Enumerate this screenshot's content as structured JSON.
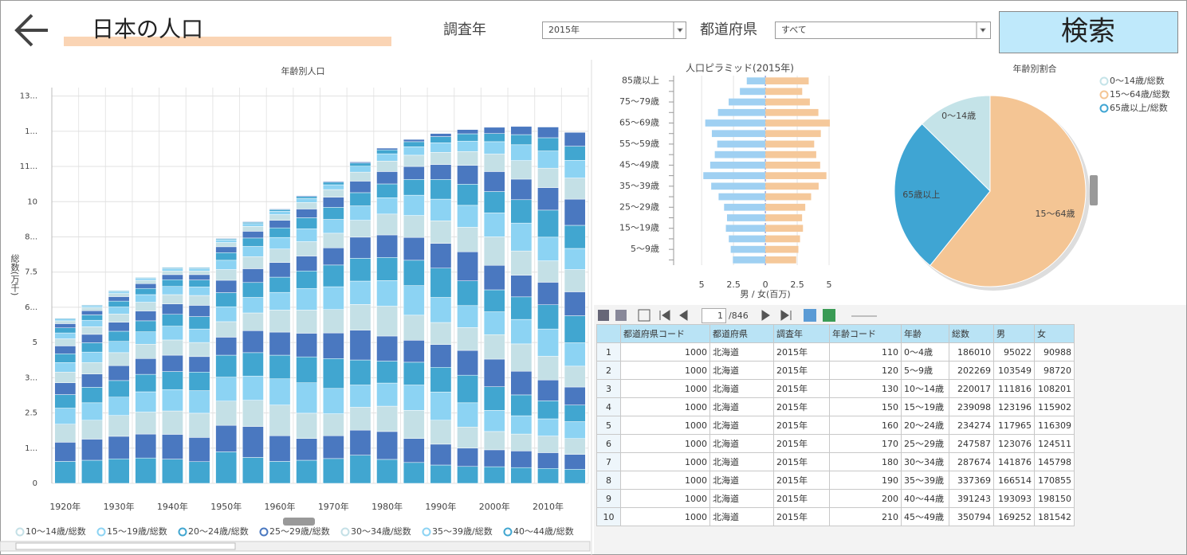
{
  "header": {
    "title": "日本の人口",
    "year_label": "調査年",
    "year_value": "2015年",
    "pref_label": "都道府県",
    "pref_value": "すべて",
    "search_button": "検索"
  },
  "chart_data": [
    {
      "type": "stacked_bar",
      "title": "年齢別人口",
      "ylabel": "総数(万千)",
      "categories": [
        "1920年",
        null,
        "1930年",
        null,
        "1940年",
        null,
        "1950年",
        null,
        "1960年",
        null,
        "1970年",
        null,
        "1980年",
        null,
        "1990年",
        null,
        "2000年",
        null,
        "2010年",
        null
      ],
      "series": [
        {
          "color": "#41a6d0",
          "values": [
            0.78,
            0.82,
            0.87,
            0.9,
            0.86,
            0.77,
            1.12,
            0.92,
            0.78,
            0.82,
            0.88,
            1.0,
            0.85,
            0.74,
            0.65,
            0.6,
            0.59,
            0.56,
            0.53,
            0.5
          ]
        },
        {
          "color": "#4a78c0",
          "values": [
            0.68,
            0.75,
            0.8,
            0.85,
            0.88,
            0.86,
            0.94,
            1.1,
            0.91,
            0.77,
            0.81,
            0.89,
            0.99,
            0.85,
            0.74,
            0.65,
            0.6,
            0.59,
            0.56,
            0.53
          ]
        },
        {
          "name": "10〜14歳/総数",
          "color": "#c4e0e6",
          "values": [
            0.64,
            0.67,
            0.74,
            0.78,
            0.83,
            0.86,
            0.86,
            0.93,
            1.09,
            0.9,
            0.78,
            0.81,
            0.9,
            1.0,
            0.85,
            0.75,
            0.65,
            0.6,
            0.59,
            0.56
          ]
        },
        {
          "name": "15〜19歳/総数",
          "color": "#8cd3f3",
          "values": [
            0.57,
            0.62,
            0.65,
            0.72,
            0.76,
            0.8,
            0.85,
            0.86,
            0.93,
            1.08,
            0.9,
            0.79,
            0.82,
            0.9,
            1.0,
            0.86,
            0.75,
            0.65,
            0.61,
            0.6
          ]
        },
        {
          "name": "20〜24歳/総数",
          "color": "#41a6d0",
          "values": [
            0.48,
            0.55,
            0.59,
            0.62,
            0.64,
            0.66,
            0.78,
            0.83,
            0.84,
            0.92,
            1.06,
            0.89,
            0.78,
            0.81,
            0.88,
            0.98,
            0.84,
            0.74,
            0.64,
            0.59
          ]
        },
        {
          "name": "25〜29歳/総数",
          "color": "#4a78c0",
          "values": [
            0.42,
            0.47,
            0.53,
            0.56,
            0.58,
            0.55,
            0.64,
            0.78,
            0.82,
            0.84,
            0.91,
            1.06,
            0.89,
            0.78,
            0.81,
            0.88,
            0.98,
            0.84,
            0.74,
            0.64
          ]
        },
        {
          "name": "30〜34歳/総数",
          "color": "#c4e0e6",
          "values": [
            0.38,
            0.41,
            0.46,
            0.51,
            0.54,
            0.5,
            0.55,
            0.63,
            0.78,
            0.82,
            0.83,
            0.91,
            1.06,
            0.89,
            0.78,
            0.81,
            0.87,
            0.97,
            0.84,
            0.74
          ]
        },
        {
          "name": "35〜39歳/総数",
          "color": "#8cd3f3",
          "values": [
            0.34,
            0.37,
            0.4,
            0.44,
            0.49,
            0.48,
            0.53,
            0.55,
            0.63,
            0.77,
            0.81,
            0.83,
            0.91,
            1.05,
            0.89,
            0.78,
            0.81,
            0.87,
            0.97,
            0.83
          ]
        },
        {
          "name": "40〜44歳/総数",
          "color": "#41a6d0",
          "values": [
            0.31,
            0.33,
            0.36,
            0.39,
            0.42,
            0.44,
            0.5,
            0.53,
            0.54,
            0.62,
            0.77,
            0.81,
            0.82,
            0.9,
            1.04,
            0.88,
            0.78,
            0.8,
            0.86,
            0.96
          ]
        },
        {
          "color": "#4a78c0",
          "values": [
            0.28,
            0.3,
            0.32,
            0.35,
            0.37,
            0.4,
            0.44,
            0.49,
            0.52,
            0.53,
            0.61,
            0.75,
            0.8,
            0.81,
            0.88,
            1.03,
            0.87,
            0.77,
            0.8,
            0.85
          ]
        },
        {
          "color": "#c4e0e6",
          "values": [
            0.25,
            0.27,
            0.29,
            0.31,
            0.33,
            0.35,
            0.38,
            0.43,
            0.48,
            0.51,
            0.52,
            0.6,
            0.74,
            0.78,
            0.8,
            0.87,
            1.01,
            0.86,
            0.76,
            0.79
          ]
        },
        {
          "color": "#8cd3f3",
          "values": [
            0.21,
            0.23,
            0.25,
            0.27,
            0.29,
            0.3,
            0.33,
            0.36,
            0.41,
            0.46,
            0.49,
            0.51,
            0.58,
            0.72,
            0.77,
            0.78,
            0.85,
            0.99,
            0.84,
            0.75
          ]
        },
        {
          "color": "#41a6d0",
          "values": [
            0.18,
            0.19,
            0.21,
            0.22,
            0.24,
            0.25,
            0.27,
            0.3,
            0.34,
            0.39,
            0.43,
            0.47,
            0.49,
            0.56,
            0.7,
            0.75,
            0.76,
            0.83,
            0.96,
            0.82
          ]
        },
        {
          "color": "#4a78c0",
          "values": [
            0.15,
            0.15,
            0.16,
            0.17,
            0.18,
            0.19,
            0.21,
            0.24,
            0.27,
            0.31,
            0.36,
            0.41,
            0.44,
            0.46,
            0.53,
            0.67,
            0.71,
            0.73,
            0.8,
            0.93
          ]
        },
        {
          "color": "#c4e0e6",
          "values": [
            0.1,
            0.11,
            0.11,
            0.12,
            0.13,
            0.13,
            0.15,
            0.17,
            0.2,
            0.23,
            0.27,
            0.32,
            0.37,
            0.4,
            0.43,
            0.49,
            0.62,
            0.66,
            0.69,
            0.75
          ]
        },
        {
          "color": "#8cd3f3",
          "values": [
            0.06,
            0.06,
            0.07,
            0.07,
            0.08,
            0.08,
            0.09,
            0.1,
            0.12,
            0.14,
            0.17,
            0.21,
            0.26,
            0.3,
            0.34,
            0.37,
            0.44,
            0.56,
            0.61,
            0.63
          ]
        },
        {
          "color": "#41a6d0",
          "values": [
            0.03,
            0.03,
            0.03,
            0.03,
            0.04,
            0.04,
            0.04,
            0.05,
            0.06,
            0.07,
            0.09,
            0.11,
            0.14,
            0.18,
            0.22,
            0.26,
            0.29,
            0.36,
            0.47,
            0.5
          ]
        },
        {
          "color": "#4a78c0",
          "values": [
            0.01,
            0.01,
            0.01,
            0.01,
            0.01,
            0.01,
            0.02,
            0.02,
            0.02,
            0.03,
            0.03,
            0.04,
            0.06,
            0.08,
            0.11,
            0.15,
            0.22,
            0.29,
            0.38,
            0.49
          ]
        }
      ],
      "ylim": [
        0,
        14.05
      ],
      "yticks": [
        0,
        {
          "value": 1.25,
          "label": "1..."
        },
        2.5,
        {
          "value": 3.75,
          "label": "3..."
        },
        5,
        {
          "value": 6.25,
          "label": "6..."
        },
        7.5,
        {
          "value": 8.75,
          "label": "8..."
        },
        10,
        {
          "value": 11.25,
          "label": "11..."
        },
        {
          "value": 12.5,
          "label": "1..."
        },
        {
          "value": 13.75,
          "label": "13..."
        }
      ],
      "grid": true
    },
    {
      "type": "pyramid",
      "title": "人口ピラミッド(2015年)",
      "xlabel": "男 / 女(百万)",
      "categories": [
        "85歳以上",
        null,
        "75〜79歳",
        null,
        "65〜69歳",
        null,
        "55〜59歳",
        null,
        "45〜49歳",
        null,
        "35〜39歳",
        null,
        "25〜29歳",
        null,
        "15〜19歳",
        null,
        "5〜9歳",
        null
      ],
      "series": [
        {
          "color": "#9fd0f2",
          "values": [
            -1.46,
            -2.0,
            -2.88,
            -3.72,
            -4.72,
            -4.2,
            -3.78,
            -3.97,
            -4.33,
            -4.87,
            -4.25,
            -3.67,
            -3.24,
            -3.01,
            -3.1,
            -2.87,
            -2.72,
            -2.55
          ]
        },
        {
          "color": "#f5c89a",
          "values": [
            3.4,
            2.89,
            3.49,
            4.16,
            5.06,
            4.35,
            3.83,
            3.99,
            4.3,
            4.79,
            4.18,
            3.59,
            3.13,
            2.88,
            2.95,
            2.72,
            2.59,
            2.42
          ]
        }
      ],
      "xlim": [
        -7.2,
        7.5
      ],
      "xticks": [
        {
          "value": -5,
          "label": "5"
        },
        {
          "value": -2.5,
          "label": "2.5"
        },
        0,
        2.5,
        5
      ],
      "grid": true
    },
    {
      "type": "pie",
      "title": "年齢別割合",
      "categories": [
        "0〜14歳",
        "15〜64歳",
        "65歳以上"
      ],
      "values": [
        12.6,
        60.8,
        26.6
      ],
      "colors": [
        "#c4e3e8",
        "#f4c594",
        "#3fa5d3"
      ],
      "legend": [
        "0〜14歳/総数",
        "15〜64歳/総数",
        "65歳以上/総数"
      ],
      "legend_position": "top-right"
    }
  ],
  "pager": {
    "page": 1,
    "total": "/846"
  },
  "table": {
    "columns": [
      "都道府県コード",
      "都道府県",
      "調査年",
      "年齢コード",
      "年齢",
      "総数",
      "男",
      "女"
    ],
    "rows": [
      [
        1,
        1000,
        "北海道",
        "2015年",
        110,
        "0〜4歳",
        186010,
        95022,
        90988
      ],
      [
        2,
        1000,
        "北海道",
        "2015年",
        120,
        "5〜9歳",
        202269,
        103549,
        98720
      ],
      [
        3,
        1000,
        "北海道",
        "2015年",
        130,
        "10〜14歳",
        220017,
        111816,
        108201
      ],
      [
        4,
        1000,
        "北海道",
        "2015年",
        150,
        "15〜19歳",
        239098,
        123196,
        115902
      ],
      [
        5,
        1000,
        "北海道",
        "2015年",
        160,
        "20〜24歳",
        234274,
        117965,
        116309
      ],
      [
        6,
        1000,
        "北海道",
        "2015年",
        170,
        "25〜29歳",
        247587,
        123076,
        124511
      ],
      [
        7,
        1000,
        "北海道",
        "2015年",
        180,
        "30〜34歳",
        287674,
        141876,
        145798
      ],
      [
        8,
        1000,
        "北海道",
        "2015年",
        190,
        "35〜39歳",
        337369,
        166514,
        170855
      ],
      [
        9,
        1000,
        "北海道",
        "2015年",
        200,
        "40〜44歳",
        391243,
        193093,
        198150
      ],
      [
        10,
        1000,
        "北海道",
        "2015年",
        210,
        "45〜49歳",
        350794,
        169252,
        181542
      ]
    ]
  }
}
